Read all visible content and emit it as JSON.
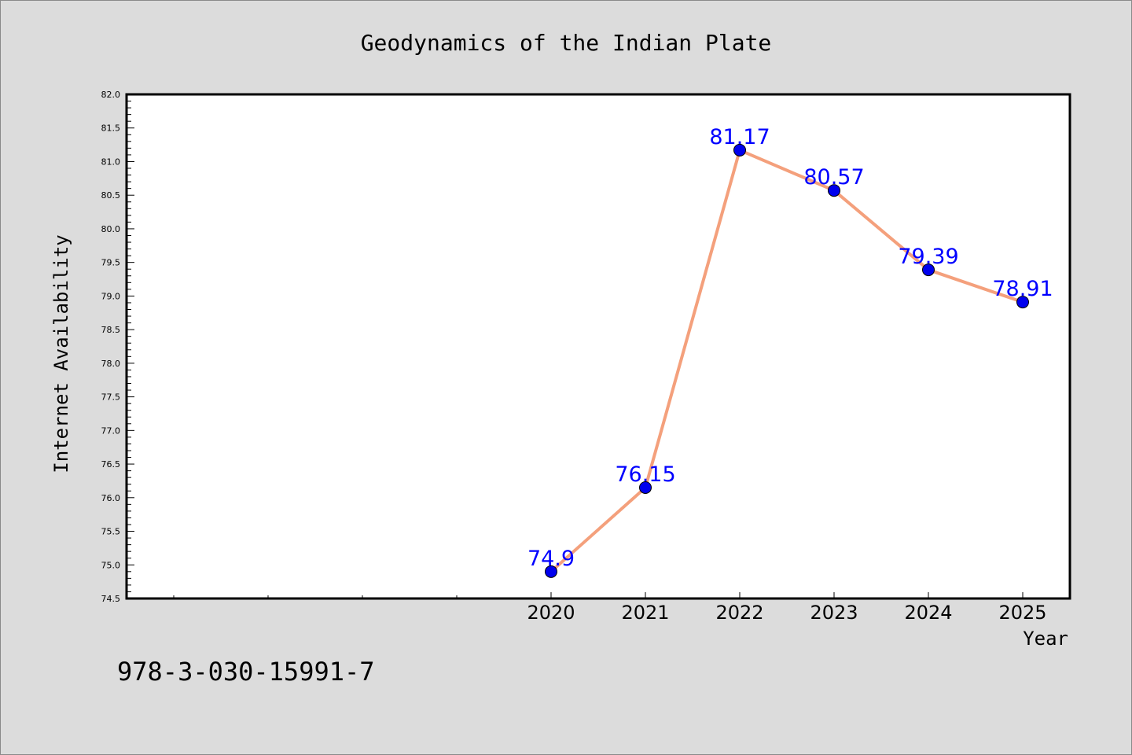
{
  "chart_data": {
    "type": "line",
    "title": "Geodynamics of the Indian Plate",
    "xlabel": "Year",
    "ylabel": "Internet Availability",
    "x": [
      2020,
      2021,
      2022,
      2023,
      2024,
      2025
    ],
    "x_tick_labels": [
      "2020",
      "2021",
      "2022",
      "2023",
      "2024",
      "2025"
    ],
    "xlim": [
      2015.5,
      2025.5
    ],
    "y": [
      74.9,
      76.15,
      81.17,
      80.57,
      79.39,
      78.91
    ],
    "data_labels": [
      "74.9",
      "76.15",
      "81.17",
      "80.57",
      "79.39",
      "78.91"
    ],
    "ylim": [
      74.5,
      82.0
    ],
    "y_tick_labels": [
      "74.5",
      "75.0",
      "75.5",
      "76.0",
      "76.5",
      "77.0",
      "77.5",
      "78.0",
      "78.5",
      "79.0",
      "79.5",
      "80.0",
      "80.5",
      "81.0",
      "81.5",
      "82.0"
    ],
    "grid": false,
    "legend": "none",
    "colors": {
      "line": "#f4a07c",
      "marker": "#0000ee",
      "data_label": "#0000ff",
      "plot_background": "#ffffff",
      "figure_background": "#dcdcdc"
    }
  },
  "footer": {
    "isbn": "978-3-030-15991-7"
  }
}
